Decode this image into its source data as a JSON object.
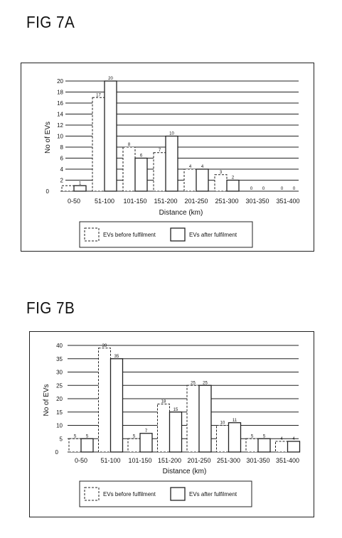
{
  "chart_data": [
    {
      "type": "bar",
      "figure_label": "FIG 7A",
      "xlabel": "Distance (km)",
      "ylabel": "No of EVs",
      "categories": [
        "0-50",
        "51-100",
        "101-150",
        "151-200",
        "201-250",
        "251-300",
        "301-350",
        "351-400"
      ],
      "y_ticks": [
        0,
        2,
        4,
        6,
        8,
        10,
        12,
        14,
        16,
        18,
        20
      ],
      "ylim": [
        0,
        20
      ],
      "grid": true,
      "legend_position": "bottom",
      "series": [
        {
          "name": "EVs before fulfilment",
          "style": "dashed",
          "values": [
            1,
            17,
            8,
            7,
            4,
            3,
            0,
            0
          ]
        },
        {
          "name": "EVs after fulfilment",
          "style": "solid",
          "values": [
            1,
            20,
            6,
            10,
            4,
            2,
            0,
            0
          ]
        }
      ],
      "data_labels": {
        "before": [
          "",
          "17",
          "8",
          "7",
          "4",
          "3",
          "0",
          "0"
        ],
        "after": [
          "1",
          "20",
          "6",
          "10",
          "4",
          "2",
          "0",
          "0"
        ]
      }
    },
    {
      "type": "bar",
      "figure_label": "FIG 7B",
      "xlabel": "Distance (km)",
      "ylabel": "No of EVs",
      "categories": [
        "0-50",
        "51-100",
        "101-150",
        "151-200",
        "201-250",
        "251-300",
        "301-350",
        "351-400"
      ],
      "y_ticks": [
        0,
        5,
        10,
        15,
        20,
        25,
        30,
        35,
        40
      ],
      "ylim": [
        0,
        40
      ],
      "grid": true,
      "legend_position": "bottom",
      "series": [
        {
          "name": "EVs before fulfilment",
          "style": "dashed",
          "values": [
            5,
            39,
            5,
            18,
            25,
            10,
            5,
            4
          ]
        },
        {
          "name": "EVs after fulfilment",
          "style": "solid",
          "values": [
            5,
            35,
            7,
            15,
            25,
            11,
            5,
            4
          ]
        }
      ],
      "data_labels": {
        "before": [
          "5",
          "39",
          "5",
          "18",
          "25",
          "10",
          "5",
          "4"
        ],
        "after": [
          "5",
          "35",
          "7",
          "15",
          "25",
          "11",
          "5",
          "4"
        ]
      }
    }
  ]
}
